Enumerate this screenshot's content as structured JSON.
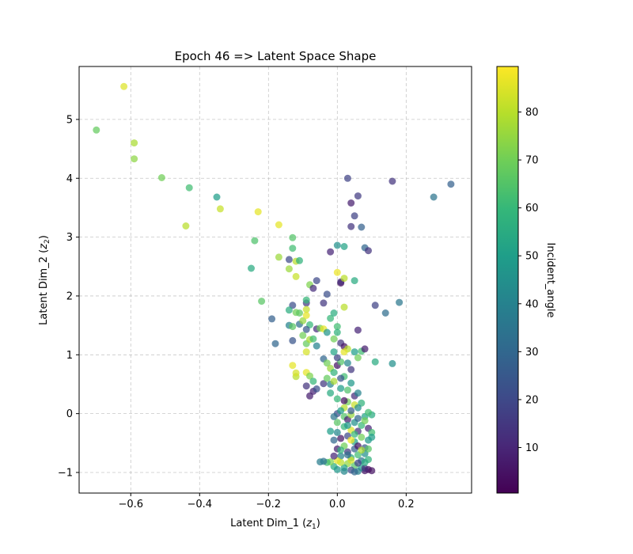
{
  "chart_data": {
    "type": "scatter",
    "title": "Epoch 46 => Latent Space Shape",
    "xlabel": {
      "main": "Latent Dim_1 (",
      "var": "z",
      "sub": "1",
      "close": ")"
    },
    "ylabel": {
      "main": "Latent Dim_2 (",
      "var": "z",
      "sub": "2",
      "close": ")"
    },
    "xlim": [
      -0.75,
      0.39
    ],
    "ylim": [
      -1.35,
      5.9
    ],
    "xticks": [
      -0.6,
      -0.4,
      -0.2,
      0.0,
      0.2
    ],
    "xtick_labels": [
      "−0.6",
      "−0.4",
      "−0.2",
      "0.0",
      "0.2"
    ],
    "yticks": [
      -1,
      0,
      1,
      2,
      3,
      4,
      5
    ],
    "ytick_labels": [
      "−1",
      "0",
      "1",
      "2",
      "3",
      "4",
      "5"
    ],
    "grid": true,
    "colorbar": {
      "label": "Incident_angle",
      "min": 0.5,
      "max": 89.5,
      "ticks": [
        10,
        20,
        30,
        40,
        50,
        60,
        70,
        80
      ],
      "tick_labels": [
        "10",
        "20",
        "30",
        "40",
        "50",
        "60",
        "70",
        "80"
      ],
      "colormap": "viridis"
    },
    "points": [
      {
        "x": -0.62,
        "y": 5.56,
        "c": 85
      },
      {
        "x": -0.7,
        "y": 4.82,
        "c": 68
      },
      {
        "x": -0.59,
        "y": 4.6,
        "c": 78
      },
      {
        "x": -0.59,
        "y": 4.33,
        "c": 74
      },
      {
        "x": -0.51,
        "y": 4.01,
        "c": 70
      },
      {
        "x": -0.43,
        "y": 3.84,
        "c": 62
      },
      {
        "x": -0.35,
        "y": 3.68,
        "c": 50
      },
      {
        "x": -0.34,
        "y": 3.48,
        "c": 82
      },
      {
        "x": -0.23,
        "y": 3.43,
        "c": 86
      },
      {
        "x": -0.44,
        "y": 3.19,
        "c": 80
      },
      {
        "x": -0.17,
        "y": 3.21,
        "c": 86
      },
      {
        "x": -0.24,
        "y": 2.94,
        "c": 64
      },
      {
        "x": -0.13,
        "y": 2.99,
        "c": 65
      },
      {
        "x": -0.13,
        "y": 2.81,
        "c": 62
      },
      {
        "x": -0.25,
        "y": 2.47,
        "c": 55
      },
      {
        "x": -0.17,
        "y": 2.66,
        "c": 76
      },
      {
        "x": -0.14,
        "y": 2.62,
        "c": 20
      },
      {
        "x": -0.12,
        "y": 2.59,
        "c": 80
      },
      {
        "x": -0.11,
        "y": 2.6,
        "c": 58
      },
      {
        "x": -0.14,
        "y": 2.46,
        "c": 76
      },
      {
        "x": -0.12,
        "y": 2.33,
        "c": 82
      },
      {
        "x": -0.22,
        "y": 1.91,
        "c": 66
      },
      {
        "x": -0.06,
        "y": 2.26,
        "c": 20
      },
      {
        "x": -0.08,
        "y": 2.19,
        "c": 72
      },
      {
        "x": -0.07,
        "y": 2.13,
        "c": 12
      },
      {
        "x": -0.03,
        "y": 2.03,
        "c": 22
      },
      {
        "x": 0.01,
        "y": 2.22,
        "c": 4
      },
      {
        "x": 0.01,
        "y": 2.24,
        "c": 12
      },
      {
        "x": 0.02,
        "y": 2.3,
        "c": 80
      },
      {
        "x": 0.0,
        "y": 2.4,
        "c": 87
      },
      {
        "x": 0.05,
        "y": 2.26,
        "c": 55
      },
      {
        "x": -0.04,
        "y": 1.88,
        "c": 15
      },
      {
        "x": -0.09,
        "y": 1.88,
        "c": 15
      },
      {
        "x": -0.09,
        "y": 1.93,
        "c": 60
      },
      {
        "x": -0.13,
        "y": 1.84,
        "c": 22
      },
      {
        "x": -0.14,
        "y": 1.76,
        "c": 56
      },
      {
        "x": -0.12,
        "y": 1.72,
        "c": 70
      },
      {
        "x": -0.11,
        "y": 1.71,
        "c": 67
      },
      {
        "x": -0.09,
        "y": 1.77,
        "c": 82
      },
      {
        "x": -0.19,
        "y": 1.61,
        "c": 28
      },
      {
        "x": -0.14,
        "y": 1.5,
        "c": 40
      },
      {
        "x": -0.13,
        "y": 1.48,
        "c": 66
      },
      {
        "x": -0.11,
        "y": 1.52,
        "c": 33
      },
      {
        "x": -0.1,
        "y": 1.58,
        "c": 75
      },
      {
        "x": -0.09,
        "y": 1.67,
        "c": 86
      },
      {
        "x": -0.08,
        "y": 1.51,
        "c": 60
      },
      {
        "x": -0.09,
        "y": 1.43,
        "c": 25
      },
      {
        "x": -0.06,
        "y": 1.44,
        "c": 12
      },
      {
        "x": -0.05,
        "y": 1.45,
        "c": 70
      },
      {
        "x": -0.04,
        "y": 1.44,
        "c": 86
      },
      {
        "x": -0.03,
        "y": 1.38,
        "c": 47
      },
      {
        "x": -0.02,
        "y": 1.62,
        "c": 60
      },
      {
        "x": -0.01,
        "y": 1.71,
        "c": 56
      },
      {
        "x": 0.02,
        "y": 1.81,
        "c": 80
      },
      {
        "x": 0.06,
        "y": 1.42,
        "c": 10
      },
      {
        "x": 0.11,
        "y": 1.84,
        "c": 18
      },
      {
        "x": 0.14,
        "y": 1.71,
        "c": 32
      },
      {
        "x": 0.18,
        "y": 1.89,
        "c": 36
      },
      {
        "x": 0.11,
        "y": 0.88,
        "c": 55
      },
      {
        "x": 0.16,
        "y": 0.85,
        "c": 45
      },
      {
        "x": -0.18,
        "y": 1.19,
        "c": 30
      },
      {
        "x": -0.13,
        "y": 1.24,
        "c": 24
      },
      {
        "x": -0.1,
        "y": 1.33,
        "c": 70
      },
      {
        "x": -0.09,
        "y": 1.19,
        "c": 68
      },
      {
        "x": -0.08,
        "y": 1.26,
        "c": 78
      },
      {
        "x": -0.07,
        "y": 1.27,
        "c": 62
      },
      {
        "x": -0.06,
        "y": 1.15,
        "c": 40
      },
      {
        "x": -0.09,
        "y": 1.05,
        "c": 84
      },
      {
        "x": 0.0,
        "y": 1.48,
        "c": 62
      },
      {
        "x": 0.0,
        "y": 1.38,
        "c": 58
      },
      {
        "x": -0.01,
        "y": 1.27,
        "c": 70
      },
      {
        "x": 0.01,
        "y": 1.2,
        "c": 14
      },
      {
        "x": 0.02,
        "y": 1.14,
        "c": 5
      },
      {
        "x": 0.03,
        "y": 1.1,
        "c": 80
      },
      {
        "x": 0.02,
        "y": 1.05,
        "c": 86
      },
      {
        "x": 0.05,
        "y": 1.05,
        "c": 50
      },
      {
        "x": 0.07,
        "y": 1.06,
        "c": 62
      },
      {
        "x": 0.08,
        "y": 1.1,
        "c": 8
      },
      {
        "x": 0.06,
        "y": 0.95,
        "c": 70
      },
      {
        "x": 0.04,
        "y": 0.75,
        "c": 15
      },
      {
        "x": -0.13,
        "y": 0.82,
        "c": 86
      },
      {
        "x": -0.12,
        "y": 0.63,
        "c": 80
      },
      {
        "x": -0.12,
        "y": 0.69,
        "c": 84
      },
      {
        "x": -0.09,
        "y": 0.7,
        "c": 86
      },
      {
        "x": -0.08,
        "y": 0.64,
        "c": 72
      },
      {
        "x": -0.07,
        "y": 0.55,
        "c": 60
      },
      {
        "x": -0.09,
        "y": 0.47,
        "c": 14
      },
      {
        "x": -0.07,
        "y": 0.38,
        "c": 10
      },
      {
        "x": -0.06,
        "y": 0.42,
        "c": 22
      },
      {
        "x": -0.04,
        "y": 0.51,
        "c": 15
      },
      {
        "x": -0.08,
        "y": 0.3,
        "c": 8
      },
      {
        "x": -0.04,
        "y": 0.93,
        "c": 30
      },
      {
        "x": -0.03,
        "y": 0.86,
        "c": 70
      },
      {
        "x": -0.02,
        "y": 0.77,
        "c": 76
      },
      {
        "x": -0.03,
        "y": 0.6,
        "c": 68
      },
      {
        "x": -0.02,
        "y": 0.5,
        "c": 40
      },
      {
        "x": -0.01,
        "y": 0.7,
        "c": 58
      },
      {
        "x": 0.0,
        "y": 0.82,
        "c": 5
      },
      {
        "x": 0.01,
        "y": 0.88,
        "c": 65
      },
      {
        "x": 0.02,
        "y": 0.63,
        "c": 62
      },
      {
        "x": 0.01,
        "y": 0.43,
        "c": 50
      },
      {
        "x": 0.03,
        "y": 0.86,
        "c": 42
      },
      {
        "x": 0.04,
        "y": 0.52,
        "c": 48
      },
      {
        "x": 0.05,
        "y": 0.3,
        "c": 12
      },
      {
        "x": 0.06,
        "y": 0.35,
        "c": 40
      },
      {
        "x": 0.07,
        "y": 0.18,
        "c": 58
      },
      {
        "x": 0.03,
        "y": 0.2,
        "c": 70
      },
      {
        "x": 0.02,
        "y": 0.1,
        "c": 80
      },
      {
        "x": -0.02,
        "y": 0.35,
        "c": 55
      },
      {
        "x": 0.0,
        "y": 0.0,
        "c": 22
      },
      {
        "x": 0.01,
        "y": 0.05,
        "c": 50
      },
      {
        "x": 0.02,
        "y": -0.05,
        "c": 65
      },
      {
        "x": 0.03,
        "y": -0.1,
        "c": 8
      },
      {
        "x": 0.04,
        "y": -0.02,
        "c": 75
      },
      {
        "x": 0.05,
        "y": -0.15,
        "c": 45
      },
      {
        "x": 0.06,
        "y": -0.08,
        "c": 30
      },
      {
        "x": 0.07,
        "y": -0.2,
        "c": 60
      },
      {
        "x": 0.08,
        "y": -0.05,
        "c": 52
      },
      {
        "x": 0.09,
        "y": -0.25,
        "c": 10
      },
      {
        "x": 0.1,
        "y": -0.02,
        "c": 55
      },
      {
        "x": 0.1,
        "y": -0.32,
        "c": 62
      },
      {
        "x": 0.09,
        "y": -0.45,
        "c": 48
      },
      {
        "x": 0.08,
        "y": -0.58,
        "c": 25
      },
      {
        "x": 0.07,
        "y": -0.4,
        "c": 70
      },
      {
        "x": 0.06,
        "y": -0.3,
        "c": 12
      },
      {
        "x": 0.05,
        "y": -0.48,
        "c": 52
      },
      {
        "x": 0.04,
        "y": -0.28,
        "c": 85
      },
      {
        "x": 0.03,
        "y": -0.38,
        "c": 20
      },
      {
        "x": 0.02,
        "y": -0.22,
        "c": 60
      },
      {
        "x": 0.01,
        "y": -0.42,
        "c": 5
      },
      {
        "x": 0.0,
        "y": -0.32,
        "c": 42
      },
      {
        "x": -0.01,
        "y": -0.45,
        "c": 30
      },
      {
        "x": -0.02,
        "y": -0.3,
        "c": 50
      },
      {
        "x": 0.0,
        "y": -0.6,
        "c": 8
      },
      {
        "x": 0.01,
        "y": -0.72,
        "c": 40
      },
      {
        "x": 0.02,
        "y": -0.55,
        "c": 70
      },
      {
        "x": 0.03,
        "y": -0.65,
        "c": 15
      },
      {
        "x": 0.04,
        "y": -0.75,
        "c": 55
      },
      {
        "x": 0.05,
        "y": -0.6,
        "c": 28
      },
      {
        "x": 0.06,
        "y": -0.7,
        "c": 62
      },
      {
        "x": 0.07,
        "y": -0.8,
        "c": 35
      },
      {
        "x": 0.08,
        "y": -0.68,
        "c": 45
      },
      {
        "x": 0.09,
        "y": -0.78,
        "c": 58
      },
      {
        "x": 0.09,
        "y": -0.95,
        "c": 3
      },
      {
        "x": 0.08,
        "y": -0.97,
        "c": 6
      },
      {
        "x": 0.07,
        "y": -0.92,
        "c": 50
      },
      {
        "x": 0.06,
        "y": -0.98,
        "c": 40
      },
      {
        "x": 0.05,
        "y": -0.88,
        "c": 65
      },
      {
        "x": 0.04,
        "y": -0.96,
        "c": 20
      },
      {
        "x": 0.03,
        "y": -0.85,
        "c": 75
      },
      {
        "x": 0.02,
        "y": -0.92,
        "c": 52
      },
      {
        "x": 0.01,
        "y": -0.83,
        "c": 80
      },
      {
        "x": 0.0,
        "y": -0.8,
        "c": 86
      },
      {
        "x": -0.01,
        "y": -0.9,
        "c": 56
      },
      {
        "x": -0.02,
        "y": -0.82,
        "c": 72
      },
      {
        "x": -0.03,
        "y": -0.83,
        "c": 62
      },
      {
        "x": -0.04,
        "y": -0.81,
        "c": 34
      },
      {
        "x": -0.05,
        "y": -0.82,
        "c": 38
      },
      {
        "x": 0.0,
        "y": -0.95,
        "c": 48
      },
      {
        "x": 0.02,
        "y": -0.98,
        "c": 42
      },
      {
        "x": 0.05,
        "y": -0.99,
        "c": 30
      },
      {
        "x": 0.08,
        "y": -0.93,
        "c": 12
      },
      {
        "x": 0.1,
        "y": -0.97,
        "c": 5
      },
      {
        "x": 0.08,
        "y": -0.83,
        "c": 55
      },
      {
        "x": 0.06,
        "y": -0.84,
        "c": 18
      },
      {
        "x": 0.04,
        "y": -0.79,
        "c": 84
      },
      {
        "x": 0.03,
        "y": -0.7,
        "c": 32
      },
      {
        "x": 0.01,
        "y": -0.62,
        "c": 58
      },
      {
        "x": -0.01,
        "y": -0.72,
        "c": 10
      },
      {
        "x": 0.0,
        "y": -0.15,
        "c": 66
      },
      {
        "x": -0.01,
        "y": -0.05,
        "c": 35
      },
      {
        "x": 0.04,
        "y": 0.05,
        "c": 26
      },
      {
        "x": 0.08,
        "y": -0.12,
        "c": 70
      },
      {
        "x": 0.02,
        "y": 0.22,
        "c": 4
      },
      {
        "x": 0.0,
        "y": 0.25,
        "c": 60
      },
      {
        "x": -0.01,
        "y": 0.55,
        "c": 78
      },
      {
        "x": 0.03,
        "y": 0.4,
        "c": 64
      },
      {
        "x": 0.05,
        "y": 0.15,
        "c": 82
      },
      {
        "x": 0.06,
        "y": 0.1,
        "c": 44
      },
      {
        "x": 0.0,
        "y": 0.95,
        "c": 18
      },
      {
        "x": -0.01,
        "y": 1.05,
        "c": 52
      },
      {
        "x": 0.01,
        "y": 0.6,
        "c": 24
      },
      {
        "x": 0.09,
        "y": 0.02,
        "c": 62
      },
      {
        "x": 0.09,
        "y": -0.6,
        "c": 66
      },
      {
        "x": 0.1,
        "y": -0.4,
        "c": 50
      },
      {
        "x": 0.06,
        "y": -0.55,
        "c": 5
      },
      {
        "x": 0.07,
        "y": -0.62,
        "c": 78
      },
      {
        "x": 0.05,
        "y": -0.35,
        "c": 60
      },
      {
        "x": 0.03,
        "y": -0.2,
        "c": 48
      },
      {
        "x": 0.04,
        "y": -0.45,
        "c": 88
      },
      {
        "x": 0.03,
        "y": 4.0,
        "c": 18
      },
      {
        "x": 0.06,
        "y": 3.7,
        "c": 16
      },
      {
        "x": 0.04,
        "y": 3.58,
        "c": 8
      },
      {
        "x": 0.05,
        "y": 3.36,
        "c": 18
      },
      {
        "x": 0.04,
        "y": 3.18,
        "c": 14
      },
      {
        "x": 0.07,
        "y": 3.17,
        "c": 28
      },
      {
        "x": 0.0,
        "y": 2.86,
        "c": 45
      },
      {
        "x": 0.02,
        "y": 2.84,
        "c": 52
      },
      {
        "x": -0.02,
        "y": 2.75,
        "c": 10
      },
      {
        "x": 0.08,
        "y": 2.82,
        "c": 30
      },
      {
        "x": 0.09,
        "y": 2.77,
        "c": 14
      },
      {
        "x": 0.16,
        "y": 3.95,
        "c": 14
      },
      {
        "x": 0.28,
        "y": 3.68,
        "c": 35
      },
      {
        "x": 0.33,
        "y": 3.9,
        "c": 28
      }
    ]
  }
}
